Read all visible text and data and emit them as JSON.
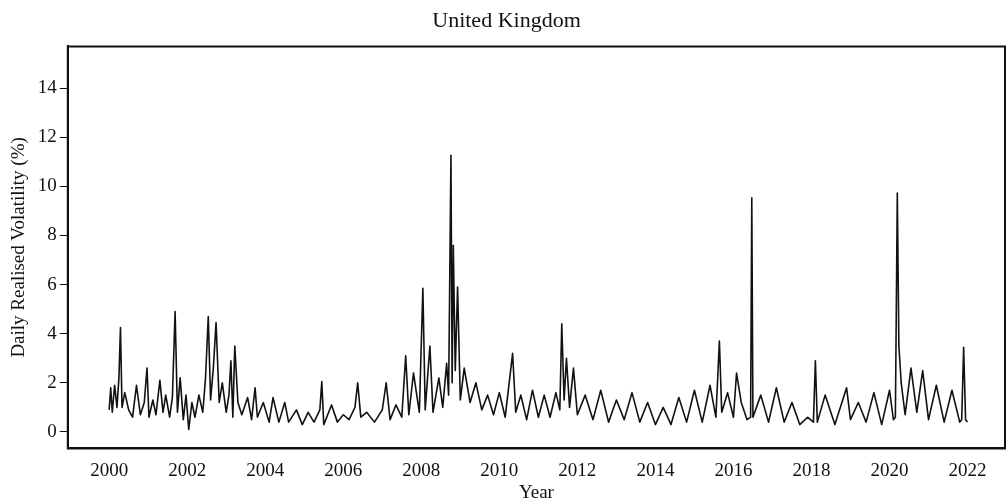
{
  "chart_data": {
    "type": "line",
    "title": "United Kingdom",
    "xlabel": "Year",
    "ylabel": "Daily Realised Volatility (%)",
    "xlim": [
      1998.94,
      2022.96
    ],
    "xticks": [
      2000,
      2002,
      2004,
      2006,
      2008,
      2010,
      2012,
      2014,
      2016,
      2018,
      2020,
      2022
    ],
    "ylim": [
      -0.67,
      15.7
    ],
    "yticks": [
      0,
      2,
      4,
      6,
      8,
      10,
      12,
      14
    ],
    "grid": false,
    "legend": false,
    "marker": "none",
    "line_style": "solid",
    "series": [
      {
        "color": "#111111",
        "x": [
          2000.0,
          2000.04,
          2000.08,
          2000.14,
          2000.2,
          2000.25,
          2000.29,
          2000.33,
          2000.4,
          2000.5,
          2000.6,
          2000.7,
          2000.8,
          2000.9,
          2000.97,
          2001.02,
          2001.12,
          2001.2,
          2001.3,
          2001.38,
          2001.45,
          2001.55,
          2001.62,
          2001.69,
          2001.75,
          2001.82,
          2001.9,
          2001.97,
          2002.04,
          2002.12,
          2002.2,
          2002.3,
          2002.4,
          2002.47,
          2002.54,
          2002.6,
          2002.67,
          2002.74,
          2002.82,
          2002.9,
          2003.0,
          2003.07,
          2003.12,
          2003.17,
          2003.22,
          2003.3,
          2003.4,
          2003.55,
          2003.65,
          2003.74,
          2003.8,
          2003.95,
          2004.1,
          2004.2,
          2004.35,
          2004.5,
          2004.6,
          2004.8,
          2004.95,
          2005.1,
          2005.25,
          2005.4,
          2005.45,
          2005.5,
          2005.7,
          2005.85,
          2006.0,
          2006.15,
          2006.3,
          2006.37,
          2006.45,
          2006.6,
          2006.8,
          2007.0,
          2007.1,
          2007.2,
          2007.35,
          2007.5,
          2007.6,
          2007.68,
          2007.8,
          2007.95,
          2008.04,
          2008.1,
          2008.22,
          2008.3,
          2008.45,
          2008.55,
          2008.65,
          2008.7,
          2008.76,
          2008.79,
          2008.82,
          2008.87,
          2008.93,
          2009.0,
          2009.1,
          2009.25,
          2009.4,
          2009.55,
          2009.7,
          2009.85,
          2010.0,
          2010.15,
          2010.34,
          2010.42,
          2010.55,
          2010.7,
          2010.85,
          2011.0,
          2011.15,
          2011.3,
          2011.45,
          2011.55,
          2011.6,
          2011.66,
          2011.72,
          2011.8,
          2011.9,
          2012.0,
          2012.2,
          2012.4,
          2012.6,
          2012.8,
          2013.0,
          2013.2,
          2013.4,
          2013.6,
          2013.8,
          2014.0,
          2014.2,
          2014.4,
          2014.6,
          2014.8,
          2015.0,
          2015.2,
          2015.4,
          2015.55,
          2015.64,
          2015.7,
          2015.85,
          2016.0,
          2016.08,
          2016.2,
          2016.35,
          2016.44,
          2016.47,
          2016.5,
          2016.7,
          2016.9,
          2017.1,
          2017.3,
          2017.5,
          2017.7,
          2017.9,
          2018.05,
          2018.1,
          2018.15,
          2018.35,
          2018.6,
          2018.9,
          2019.0,
          2019.2,
          2019.4,
          2019.6,
          2019.8,
          2020.0,
          2020.1,
          2020.15,
          2020.2,
          2020.24,
          2020.3,
          2020.4,
          2020.55,
          2020.7,
          2020.85,
          2021.0,
          2021.2,
          2021.4,
          2021.6,
          2021.8,
          2021.85,
          2021.9,
          2021.95,
          2022.0
        ],
        "values": [
          0.9,
          1.8,
          0.8,
          1.9,
          1.0,
          2.2,
          4.25,
          1.0,
          1.6,
          0.9,
          0.6,
          1.9,
          0.7,
          1.2,
          2.6,
          0.6,
          1.3,
          0.7,
          2.1,
          0.8,
          1.5,
          0.6,
          1.4,
          4.9,
          0.8,
          2.2,
          0.5,
          1.5,
          0.1,
          1.2,
          0.6,
          1.5,
          0.8,
          2.2,
          4.7,
          1.3,
          2.6,
          4.45,
          1.2,
          2.0,
          0.8,
          1.5,
          2.9,
          0.6,
          3.5,
          1.2,
          0.7,
          1.4,
          0.5,
          1.8,
          0.6,
          1.2,
          0.4,
          1.4,
          0.4,
          1.2,
          0.4,
          0.9,
          0.3,
          0.8,
          0.4,
          0.9,
          2.05,
          0.3,
          1.1,
          0.4,
          0.7,
          0.5,
          1.0,
          2.0,
          0.6,
          0.8,
          0.4,
          0.9,
          2.0,
          0.5,
          1.1,
          0.6,
          3.1,
          0.7,
          2.4,
          0.8,
          5.85,
          0.9,
          3.5,
          0.8,
          2.2,
          1.0,
          2.8,
          1.5,
          11.27,
          2.0,
          7.6,
          2.5,
          5.9,
          1.3,
          2.6,
          1.2,
          2.0,
          0.9,
          1.5,
          0.7,
          1.6,
          0.6,
          3.2,
          0.8,
          1.5,
          0.5,
          1.7,
          0.6,
          1.5,
          0.6,
          1.6,
          0.9,
          4.4,
          1.3,
          3.0,
          1.0,
          2.6,
          0.7,
          1.5,
          0.5,
          1.7,
          0.4,
          1.3,
          0.5,
          1.6,
          0.4,
          1.2,
          0.3,
          1.0,
          0.3,
          1.4,
          0.4,
          1.7,
          0.4,
          1.9,
          0.6,
          3.7,
          0.8,
          1.6,
          0.6,
          2.4,
          1.2,
          0.5,
          0.6,
          9.53,
          0.6,
          1.5,
          0.4,
          1.8,
          0.4,
          1.2,
          0.3,
          0.6,
          0.4,
          2.9,
          0.4,
          1.5,
          0.3,
          1.8,
          0.5,
          1.2,
          0.4,
          1.6,
          0.3,
          1.7,
          0.5,
          0.6,
          9.73,
          3.5,
          2.0,
          0.7,
          2.6,
          0.8,
          2.5,
          0.5,
          1.9,
          0.4,
          1.7,
          0.4,
          0.5,
          3.45,
          0.5,
          0.4
        ]
      }
    ]
  }
}
